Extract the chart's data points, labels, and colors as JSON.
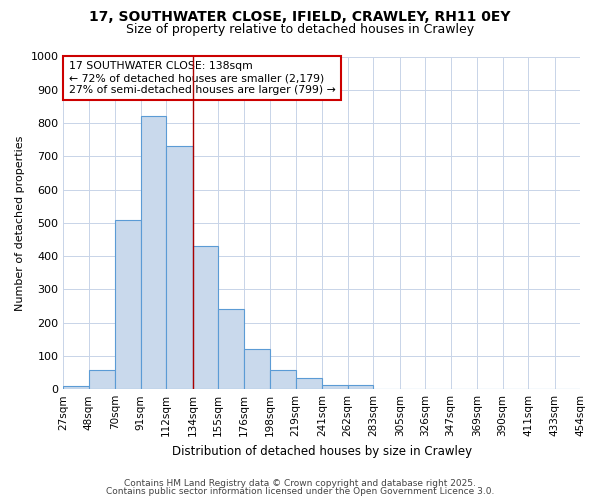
{
  "title_line1": "17, SOUTHWATER CLOSE, IFIELD, CRAWLEY, RH11 0EY",
  "title_line2": "Size of property relative to detached houses in Crawley",
  "xlabel": "Distribution of detached houses by size in Crawley",
  "ylabel": "Number of detached properties",
  "bin_edges": [
    27,
    48,
    70,
    91,
    112,
    134,
    155,
    176,
    198,
    219,
    241,
    262,
    283,
    305,
    326,
    347,
    369,
    390,
    411,
    433,
    454
  ],
  "bar_heights": [
    10,
    57,
    510,
    820,
    730,
    430,
    240,
    120,
    57,
    33,
    13,
    13,
    0,
    0,
    0,
    0,
    0,
    0,
    0,
    0
  ],
  "bar_color": "#c9d9ec",
  "bar_edgecolor": "#5b9bd5",
  "property_size": 138,
  "vline_x": 134,
  "vline_color": "#aa0000",
  "annotation_text": "17 SOUTHWATER CLOSE: 138sqm\n← 72% of detached houses are smaller (2,179)\n27% of semi-detached houses are larger (799) →",
  "annotation_box_color": "#cc0000",
  "ylim": [
    0,
    1000
  ],
  "yticks": [
    0,
    100,
    200,
    300,
    400,
    500,
    600,
    700,
    800,
    900,
    1000
  ],
  "grid_color": "#c8d4e8",
  "footer_line1": "Contains HM Land Registry data © Crown copyright and database right 2025.",
  "footer_line2": "Contains public sector information licensed under the Open Government Licence 3.0.",
  "bg_color": "#ffffff"
}
